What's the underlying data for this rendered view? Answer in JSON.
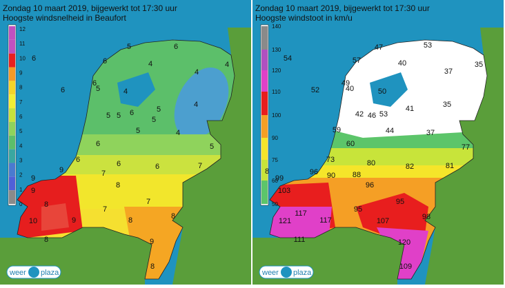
{
  "panels": [
    {
      "title": "Zondag 10 maart 2019, bijgewerkt tot 17:30 uur",
      "subtitle": "Hoogste windsnelheid in Beaufort",
      "legend": [
        12,
        11,
        10,
        9,
        8,
        7,
        6,
        5,
        4,
        3,
        2,
        1,
        0
      ],
      "labels": [
        5,
        6,
        6,
        6,
        4,
        4,
        4,
        6,
        5,
        6,
        4,
        5,
        5,
        6,
        5,
        4,
        5,
        5,
        4,
        6,
        5,
        6,
        6,
        6,
        7,
        9,
        7,
        9,
        8,
        9,
        7,
        8,
        7,
        8,
        8,
        10,
        9,
        8,
        9,
        8
      ]
    },
    {
      "title": "Zondag 10 maart 2019, bijgewerkt tot 17:30 uur",
      "subtitle": "Hoogste windstoot in km/u",
      "legend": [
        140,
        130,
        120,
        110,
        100,
        90,
        75,
        60,
        50
      ],
      "labels": [
        47,
        53,
        57,
        54,
        40,
        37,
        35,
        49,
        40,
        52,
        50,
        41,
        35,
        42,
        46,
        53,
        44,
        37,
        59,
        60,
        77,
        73,
        80,
        82,
        81,
        96,
        90,
        88,
        96,
        99,
        103,
        95,
        95,
        117,
        117,
        107,
        98,
        121,
        111,
        120,
        109,
        8
      ]
    }
  ],
  "logo": {
    "left": "weer",
    "right": "plaza"
  }
}
